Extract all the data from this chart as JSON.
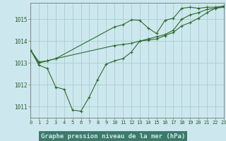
{
  "title": "Graphe pression niveau de la mer (hPa)",
  "bg_color": "#cce8ee",
  "label_bg_color": "#3d7a6a",
  "grid_color": "#aacccc",
  "line_color": "#2d6a2d",
  "x_min": 0,
  "x_max": 23,
  "y_min": 1010.5,
  "y_max": 1015.75,
  "yticks": [
    1011,
    1012,
    1013,
    1014,
    1015
  ],
  "xticks": [
    0,
    1,
    2,
    3,
    4,
    5,
    6,
    7,
    8,
    9,
    10,
    11,
    12,
    13,
    14,
    15,
    16,
    17,
    18,
    19,
    20,
    21,
    22,
    23
  ],
  "series1_x": [
    0,
    1,
    2,
    3,
    4,
    5,
    6,
    7,
    8,
    9,
    10,
    11,
    12,
    13,
    14,
    15,
    16,
    17,
    18,
    19,
    20,
    21,
    22,
    23
  ],
  "series1_y": [
    1013.6,
    1012.9,
    1012.75,
    1011.9,
    1011.8,
    1010.85,
    1010.8,
    1011.45,
    1012.25,
    1012.95,
    1013.1,
    1013.2,
    1013.5,
    1014.0,
    1014.1,
    1014.2,
    1014.3,
    1014.5,
    1015.0,
    1015.2,
    1015.3,
    1015.45,
    1015.5,
    1015.6
  ],
  "series2_x": [
    0,
    1,
    2,
    3,
    10,
    11,
    12,
    13,
    14,
    15,
    16,
    17,
    18,
    19,
    20,
    21,
    22,
    23
  ],
  "series2_y": [
    1013.6,
    1013.0,
    1013.1,
    1013.2,
    1014.65,
    1014.75,
    1014.97,
    1014.95,
    1014.6,
    1014.35,
    1014.95,
    1015.05,
    1015.5,
    1015.55,
    1015.5,
    1015.55,
    1015.55,
    1015.6
  ],
  "series3_x": [
    0,
    1,
    2,
    3,
    10,
    11,
    12,
    13,
    14,
    15,
    16,
    17,
    18,
    19,
    20,
    21,
    22,
    23
  ],
  "series3_y": [
    1013.6,
    1013.05,
    1013.1,
    1013.2,
    1013.8,
    1013.85,
    1013.9,
    1014.0,
    1014.05,
    1014.1,
    1014.25,
    1014.4,
    1014.7,
    1014.85,
    1015.05,
    1015.3,
    1015.5,
    1015.55
  ]
}
